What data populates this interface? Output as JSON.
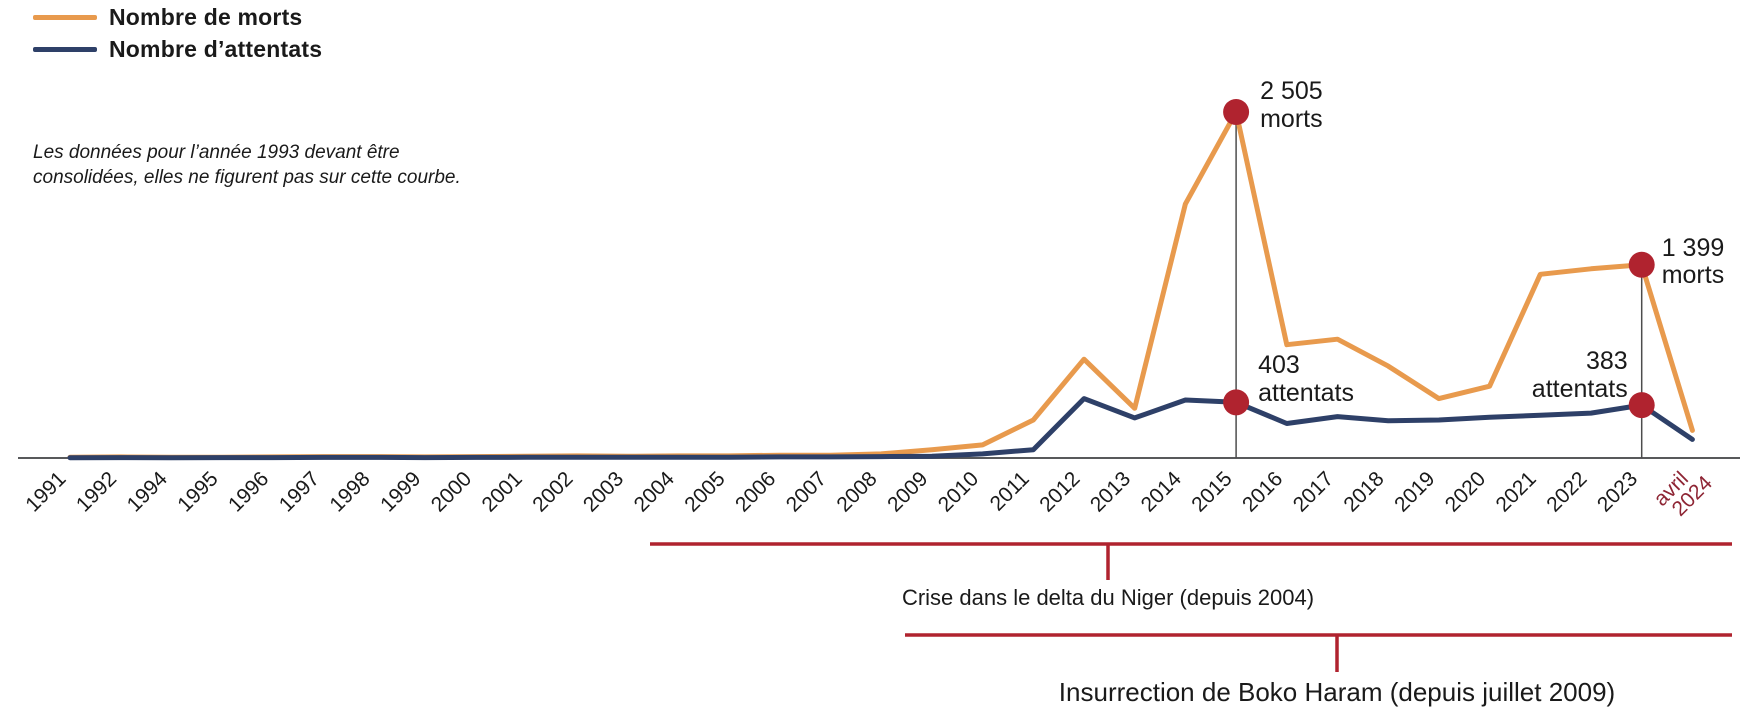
{
  "legend": {
    "items": [
      {
        "label": "Nombre de morts",
        "color": "#E89A4D"
      },
      {
        "label": "Nombre d’attentats",
        "color": "#2E4068"
      }
    ]
  },
  "note": "Les données pour l’année 1993 devant être consolidées, elles ne figurent pas sur cette courbe.",
  "colors": {
    "morts_line": "#E89A4D",
    "attentats_line": "#2E4068",
    "accent_red": "#B0232F",
    "special_tick_label": "#8E2534",
    "axis": "#58595B",
    "drop_line": "#4D4D4D",
    "text": "#1A1A1A"
  },
  "chart_data": {
    "type": "line",
    "categories": [
      "1991",
      "1992",
      "1994",
      "1995",
      "1996",
      "1997",
      "1998",
      "1999",
      "2000",
      "2001",
      "2002",
      "2003",
      "2004",
      "2005",
      "2006",
      "2007",
      "2008",
      "2009",
      "2010",
      "2011",
      "2012",
      "2013",
      "2014",
      "2015",
      "2016",
      "2017",
      "2018",
      "2019",
      "2020",
      "2021",
      "2022",
      "2023",
      "avril 2024"
    ],
    "x_note": "1993 omitted (data being consolidated); last tick 'avril 2024' shown in dark red on two lines",
    "series": [
      {
        "name": "Nombre de morts",
        "color": "#E89A4D",
        "values": [
          5,
          8,
          5,
          6,
          8,
          10,
          10,
          8,
          10,
          12,
          15,
          12,
          15,
          15,
          20,
          20,
          30,
          60,
          95,
          275,
          715,
          360,
          1840,
          2505,
          820,
          860,
          665,
          430,
          520,
          1330,
          1370,
          1399,
          200
        ]
      },
      {
        "name": "Nombre d’attentats",
        "color": "#2E4068",
        "values": [
          2,
          3,
          2,
          3,
          3,
          4,
          4,
          3,
          4,
          5,
          6,
          5,
          6,
          6,
          8,
          8,
          10,
          12,
          30,
          60,
          430,
          290,
          420,
          403,
          250,
          300,
          270,
          275,
          295,
          310,
          325,
          383,
          135
        ]
      }
    ],
    "ylim": [
      0,
      2600
    ],
    "grid": false,
    "legend_position": "top-left",
    "annotations": [
      {
        "category": "2015",
        "series": "Nombre de morts",
        "value": 2505,
        "value_label": "2 505",
        "unit_label": "morts",
        "side": "right"
      },
      {
        "category": "2015",
        "series": "Nombre d’attentats",
        "value": 403,
        "value_label": "403",
        "unit_label": "attentats",
        "side": "right"
      },
      {
        "category": "2023",
        "series": "Nombre de morts",
        "value": 1399,
        "value_label": "1 399",
        "unit_label": "morts",
        "side": "right"
      },
      {
        "category": "2023",
        "series": "Nombre d’attentats",
        "value": 383,
        "value_label": "383",
        "unit_label": "attentats",
        "side": "left"
      }
    ],
    "drop_line_categories": [
      "2015",
      "2023"
    ],
    "events": [
      {
        "label": "Crise dans le delta du Niger (depuis 2004)",
        "since_category": "2004"
      },
      {
        "label": "Insurrection de Boko Haram (depuis juillet 2009)",
        "since_category": "2009"
      }
    ]
  }
}
